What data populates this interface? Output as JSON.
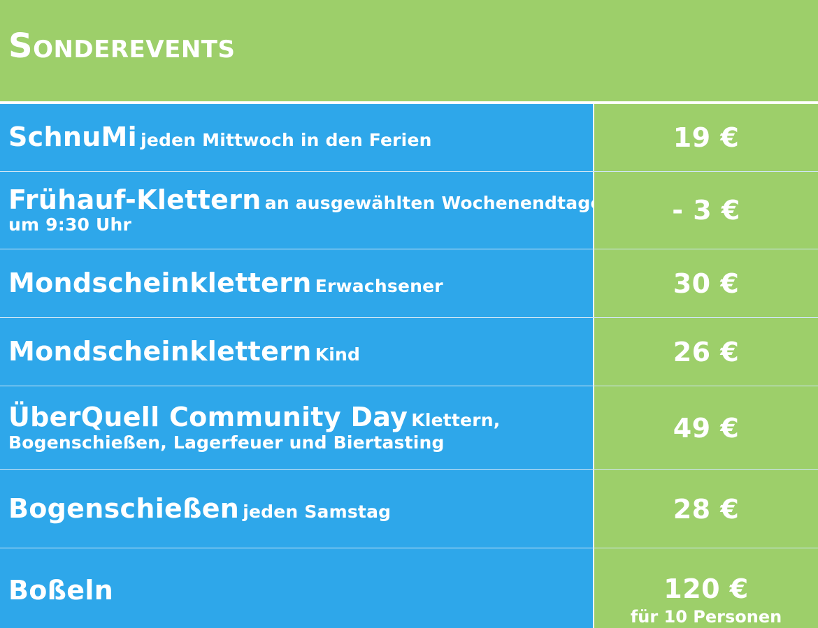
{
  "title": "Sonderevents",
  "rows": [
    {
      "name": "SchnuMi",
      "detail": "jeden Mittwoch in den Ferien",
      "detail2": "",
      "price": "19 €",
      "note": ""
    },
    {
      "name": "Frühauf-Klettern",
      "detail": "an ausgewählten Wochenendtagen",
      "detail2": "um 9:30 Uhr",
      "price": "- 3 €",
      "note": ""
    },
    {
      "name": "Mondscheinklettern",
      "detail": "Erwachsener",
      "detail2": "",
      "price": "30 €",
      "note": ""
    },
    {
      "name": "Mondscheinklettern",
      "detail": "Kind",
      "detail2": "",
      "price": "26 €",
      "note": ""
    },
    {
      "name": "ÜberQuell Community Day",
      "detail": "Klettern,",
      "detail2": "Bogenschießen, Lagerfeuer und Biertasting",
      "price": "49 €",
      "note": ""
    },
    {
      "name": "Bogenschießen",
      "detail": "jeden Samstag",
      "detail2": "",
      "price": "28 €",
      "note": ""
    },
    {
      "name": "Boßeln",
      "detail": "",
      "detail2": "",
      "price": "120 €",
      "note": "für 10 Personen"
    }
  ],
  "colors": {
    "header_green": "#9dcf6a",
    "row_blue": "#2ea7ea",
    "price_green": "#9dcf6a",
    "text": "#ffffff"
  }
}
